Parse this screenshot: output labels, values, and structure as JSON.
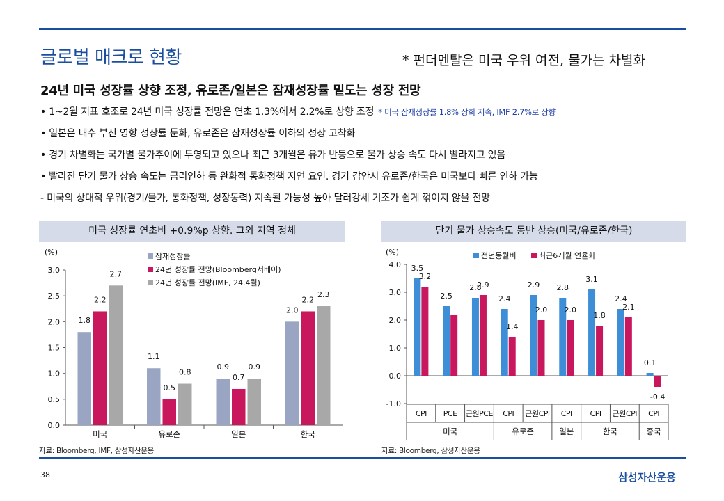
{
  "header": {
    "title": "글로벌 매크로 현황",
    "subtitle": "* 펀더멘탈은 미국 우위 여전, 물가는 차별화"
  },
  "headline": "24년 미국 성장률 상향 조정, 유로존/일본은 잠재성장률 밑도는 성장 전망",
  "bullets": [
    {
      "text": "• 1~2월 지표 호조로 24년 미국 성장률 전망은 연초 1.3%에서 2.2%로 상향 조정",
      "note": "* 미국 잠재성장률 1.8% 상회 지속, IMF 2.7%로 상향"
    },
    {
      "text": "• 일본은 내수 부진 영향 성장률 둔화, 유로존은 잠재성장률 이하의 성장 고착화"
    },
    {
      "text": "• 경기 차별화는 국가별 물가추이에 투영되고 있으나 최근 3개월은 유가 반등으로 물가 상승 속도 다시 빨라지고 있음"
    },
    {
      "text": "• 빨라진 단기 물가 상승 속도는 금리인하 등 완화적 통화정책 지연 요인. 경기 감안시 유로존/한국은 미국보다 빠른 인하 가능"
    },
    {
      "text": "- 미국의 상대적 우위(경기/물가, 통화정책, 성장동력) 지속될 가능성 높아 달러강세 기조가 쉽게 꺾이지 않을 전망"
    }
  ],
  "left_panel": {
    "title": "미국 성장률 연초비 +0.9%p 상향. 그외 지역 정체",
    "unit": "(%)",
    "source": "자료: Bloomberg, IMF, 삼성자산운용"
  },
  "right_panel": {
    "title": "단기 물가 상승속도 동반 상승(미국/유로존/한국)",
    "unit": "(%)",
    "source": "자료: Bloomberg, 삼성자산운용"
  },
  "chart_data": [
    {
      "type": "bar",
      "title": "미국 성장률 연초비 +0.9%p 상향. 그외 지역 정체",
      "ylabel": "(%)",
      "ylim": [
        0,
        3.0
      ],
      "yticks": [
        "0.0",
        "0.5",
        "1.0",
        "1.5",
        "2.0",
        "2.5",
        "3.0"
      ],
      "categories": [
        "미국",
        "유로존",
        "일본",
        "한국"
      ],
      "legend_position": "top-center",
      "series": [
        {
          "name": "잠재성장률",
          "color": "#9aa5c3",
          "values": [
            1.8,
            1.1,
            0.9,
            2.0
          ],
          "labels": [
            "1.8",
            "1.1",
            "0.9",
            "2.0"
          ]
        },
        {
          "name": "24년 성장률 전망(Bloomberg서베이)",
          "color": "#c8175d",
          "values": [
            2.2,
            0.5,
            0.7,
            2.2
          ],
          "labels": [
            "2.2",
            "0.5",
            "0.7",
            "2.2"
          ]
        },
        {
          "name": "24년 성장률 전망(IMF, 24.4월)",
          "color": "#a8a8a8",
          "values": [
            2.7,
            0.8,
            0.9,
            2.3
          ],
          "labels": [
            "2.7",
            "0.8",
            "0.9",
            "2.3"
          ]
        }
      ]
    },
    {
      "type": "bar",
      "title": "단기 물가 상승속도 동반 상승(미국/유로존/한국)",
      "ylabel": "(%)",
      "ylim": [
        -1.0,
        4.0
      ],
      "yticks": [
        "-1.0",
        "0.0",
        "1.0",
        "2.0",
        "3.0",
        "4.0"
      ],
      "categories": [
        "CPI",
        "PCE",
        "근원PCE",
        "CPI",
        "근원CPI",
        "CPI",
        "CPI",
        "근원CPI",
        "CPI"
      ],
      "groups": [
        {
          "label": "미국",
          "start": 0,
          "count": 3
        },
        {
          "label": "유로존",
          "start": 3,
          "count": 2
        },
        {
          "label": "일본",
          "start": 5,
          "count": 1
        },
        {
          "label": "한국",
          "start": 6,
          "count": 2
        },
        {
          "label": "중국",
          "start": 8,
          "count": 1
        }
      ],
      "legend_position": "top-center",
      "series": [
        {
          "name": "전년동월비",
          "color": "#3d8ed6",
          "values": [
            3.5,
            2.5,
            2.8,
            2.4,
            2.9,
            2.8,
            3.1,
            2.4,
            0.1
          ],
          "labels": [
            "3.5",
            "2.5",
            "2.8",
            "2.4",
            "2.9",
            "2.8",
            "3.1",
            "2.4",
            "0.1"
          ]
        },
        {
          "name": "최근6개월 연율화",
          "color": "#c8175d",
          "values": [
            3.2,
            2.2,
            2.9,
            1.4,
            2.0,
            2.0,
            1.8,
            2.1,
            -0.4
          ],
          "labels": [
            "3.2",
            "",
            "2.9",
            "1.4",
            "2.0",
            "2.0",
            "1.8",
            "2.1",
            "-0.4"
          ]
        }
      ]
    }
  ],
  "footer": {
    "page_number": "38",
    "brand": "삼성자산운용"
  }
}
